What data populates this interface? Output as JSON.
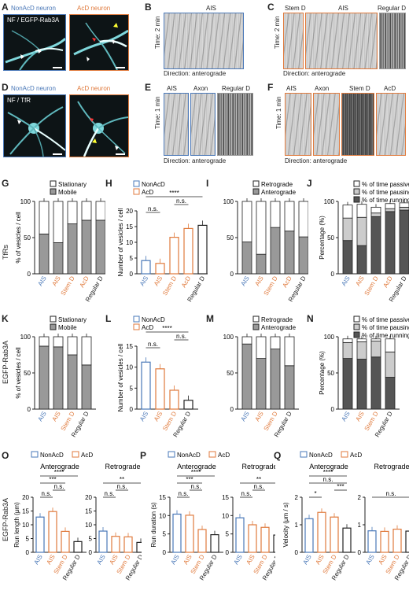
{
  "panels": {
    "A": "A",
    "B": "B",
    "C": "C",
    "D": "D",
    "E": "E",
    "F": "F",
    "G": "G",
    "H": "H",
    "I": "I",
    "J": "J",
    "K": "K",
    "L": "L",
    "M": "M",
    "N": "N",
    "O": "O",
    "P": "P",
    "Q": "Q"
  },
  "row1": {
    "nonacd_title": "NonAcD neuron",
    "acd_title": "AcD neuron",
    "stain_a": "NF / EGFP-Rab3A",
    "stain_d": "NF / TfR",
    "kymo_b": "AIS",
    "kymo_c": [
      "Stem D",
      "AIS",
      "Regular D"
    ],
    "time_2min": "Time: 2 min",
    "time_1min": "Time: 1 min",
    "direction": "Direction: anterograde",
    "kymo_e": [
      "AIS",
      "Axon",
      "Regular D"
    ],
    "kymo_f": [
      "AIS",
      "Axon",
      "Stem D",
      "AcD"
    ]
  },
  "colors": {
    "nonacd": "#4a78b8",
    "acd": "#e07a3c",
    "mobile": "#999999",
    "dark": "#555555",
    "light": "#cccccc"
  },
  "side_labels": {
    "tfr": "TfRs",
    "rab": "EGFP-Rab3A"
  },
  "chart_data": [
    {
      "panel": "G",
      "type": "bar",
      "stacked": true,
      "ylabel": "% of vesicles / cell",
      "ylim": [
        0,
        100
      ],
      "yticks": [
        0,
        50,
        100
      ],
      "legend": [
        "Stationary",
        "Mobile"
      ],
      "categories": [
        "AIS",
        "AIS",
        "Stem D",
        "AcD",
        "Regular D"
      ],
      "cat_colors": [
        "#4a78b8",
        "#e07a3c",
        "#e07a3c",
        "#e07a3c",
        "#222222"
      ],
      "series": [
        {
          "name": "Mobile",
          "values": [
            55,
            43,
            69,
            74,
            74
          ]
        },
        {
          "name": "Stationary",
          "values": [
            45,
            57,
            31,
            26,
            26
          ]
        }
      ]
    },
    {
      "panel": "H",
      "type": "bar",
      "ylabel": "Number of vesicles / cell",
      "ylim": [
        0,
        20
      ],
      "yticks": [
        0,
        5,
        10,
        15,
        20
      ],
      "legend": [
        "NonAcD",
        "AcD"
      ],
      "categories": [
        "AIS",
        "AIS",
        "Stem D",
        "AcD",
        "Regular D"
      ],
      "cat_colors": [
        "#4a78b8",
        "#e07a3c",
        "#e07a3c",
        "#e07a3c",
        "#222222"
      ],
      "values": [
        4.2,
        3.3,
        11.6,
        14.4,
        15.4
      ],
      "sig": [
        {
          "a": 0,
          "b": 1,
          "text": "n.s."
        },
        {
          "a": 2,
          "b": 3,
          "text": "n.s."
        },
        {
          "a": 0,
          "b": 4,
          "text": "****"
        }
      ]
    },
    {
      "panel": "I",
      "type": "bar",
      "stacked": true,
      "ylim": [
        0,
        100
      ],
      "yticks": [
        0,
        50,
        100
      ],
      "legend": [
        "Retrograde",
        "Anterograde"
      ],
      "categories": [
        "AIS",
        "AIS",
        "Stem D",
        "AcD",
        "Regular D"
      ],
      "cat_colors": [
        "#4a78b8",
        "#e07a3c",
        "#e07a3c",
        "#e07a3c",
        "#222222"
      ],
      "series": [
        {
          "name": "Anterograde",
          "values": [
            44,
            27,
            64,
            59,
            51
          ]
        },
        {
          "name": "Retrograde",
          "values": [
            56,
            73,
            36,
            41,
            49
          ]
        }
      ]
    },
    {
      "panel": "J",
      "type": "bar",
      "stacked": true,
      "ylabel": "Percentage (%)",
      "ylim": [
        0,
        100
      ],
      "yticks": [
        0,
        50,
        100
      ],
      "legend": [
        "% of time passive",
        "% of time pausing",
        "% of time running"
      ],
      "categories": [
        "AIS",
        "AIS",
        "Stem D",
        "AcD",
        "Regular D"
      ],
      "cat_colors": [
        "#4a78b8",
        "#e07a3c",
        "#e07a3c",
        "#e07a3c",
        "#222222"
      ],
      "series": [
        {
          "name": "% of time running",
          "values": [
            46,
            39,
            79,
            86,
            88
          ]
        },
        {
          "name": "% of time pausing",
          "values": [
            31,
            39,
            5,
            4,
            4
          ]
        },
        {
          "name": "% of time passive",
          "values": [
            18,
            18,
            8,
            7,
            6
          ]
        }
      ]
    },
    {
      "panel": "K",
      "type": "bar",
      "stacked": true,
      "ylabel": "% of vesicles / cell",
      "ylim": [
        0,
        100
      ],
      "yticks": [
        0,
        50,
        100
      ],
      "legend": [
        "Stationary",
        "Mobile"
      ],
      "categories": [
        "AIS",
        "AIS",
        "Stem D",
        "Regular D"
      ],
      "cat_colors": [
        "#4a78b8",
        "#e07a3c",
        "#e07a3c",
        "#222222"
      ],
      "series": [
        {
          "name": "Mobile",
          "values": [
            87,
            86,
            75,
            61
          ]
        },
        {
          "name": "Stationary",
          "values": [
            13,
            14,
            25,
            39
          ]
        }
      ]
    },
    {
      "panel": "L",
      "type": "bar",
      "ylabel": "Number of vesicles / cell",
      "ylim": [
        0,
        15
      ],
      "yticks": [
        0,
        5,
        10,
        15
      ],
      "legend": [
        "NonAcD",
        "AcD"
      ],
      "categories": [
        "AIS",
        "AIS",
        "Stem D",
        "Regular D"
      ],
      "cat_colors": [
        "#4a78b8",
        "#e07a3c",
        "#e07a3c",
        "#222222"
      ],
      "values": [
        11.2,
        9.6,
        4.5,
        2.1
      ],
      "sig": [
        {
          "a": 0,
          "b": 1,
          "text": "n.s."
        },
        {
          "a": 2,
          "b": 3,
          "text": "n.s."
        },
        {
          "a": 0,
          "b": 3,
          "text": "****"
        }
      ]
    },
    {
      "panel": "M",
      "type": "bar",
      "stacked": true,
      "ylim": [
        0,
        100
      ],
      "yticks": [
        0,
        50,
        100
      ],
      "legend": [
        "Retrograde",
        "Anterograde"
      ],
      "categories": [
        "AIS",
        "AIS",
        "Stem D",
        "Regular D"
      ],
      "cat_colors": [
        "#4a78b8",
        "#e07a3c",
        "#e07a3c",
        "#222222"
      ],
      "series": [
        {
          "name": "Anterograde",
          "values": [
            90,
            70,
            83,
            60
          ]
        },
        {
          "name": "Retrograde",
          "values": [
            10,
            30,
            17,
            40
          ]
        }
      ]
    },
    {
      "panel": "N",
      "type": "bar",
      "stacked": true,
      "ylabel": "Percentage (%)",
      "ylim": [
        0,
        100
      ],
      "yticks": [
        0,
        50,
        100
      ],
      "legend": [
        "% of time passive",
        "% of time pausing",
        "% of time running"
      ],
      "categories": [
        "AIS",
        "AIS",
        "Stem D",
        "Regular D"
      ],
      "cat_colors": [
        "#4a78b8",
        "#e07a3c",
        "#e07a3c",
        "#222222"
      ],
      "series": [
        {
          "name": "% of time running",
          "values": [
            70,
            69,
            72,
            44
          ]
        },
        {
          "name": "% of time pausing",
          "values": [
            22,
            24,
            22,
            35
          ]
        },
        {
          "name": "% of time passive",
          "values": [
            5,
            4,
            3,
            18
          ]
        }
      ]
    },
    {
      "panel": "O",
      "type": "bar",
      "title_left": "Anterograde",
      "title_right": "Retrograde",
      "ylabel": "Run length (μm)",
      "ylim": [
        0,
        20
      ],
      "yticks": [
        0,
        5,
        10,
        15,
        20
      ],
      "legend": [
        "NonAcD",
        "AcD"
      ],
      "categories": [
        "AIS",
        "AIS",
        "Stem D",
        "Regular D"
      ],
      "cat_colors": [
        "#4a78b8",
        "#e07a3c",
        "#e07a3c",
        "#222222"
      ],
      "left_values": [
        12.8,
        14.8,
        7.6,
        3.9
      ],
      "right_values": [
        7.7,
        5.8,
        5.6,
        3.6
      ],
      "left_sig": [
        {
          "a": 0,
          "b": 1,
          "text": "n.s."
        },
        {
          "a": 1,
          "b": 2,
          "text": "n.s."
        },
        {
          "a": 0,
          "b": 2,
          "text": "***"
        },
        {
          "a": 0,
          "b": 3,
          "text": "****"
        }
      ],
      "right_sig": [
        {
          "a": 0,
          "b": 1,
          "text": "n.s."
        },
        {
          "a": 1,
          "b": 2,
          "text": "n.s."
        },
        {
          "a": 0,
          "b": 3,
          "text": "**"
        }
      ]
    },
    {
      "panel": "P",
      "type": "bar",
      "title_left": "Anterograde",
      "title_right": "Retrograde",
      "ylabel": "Run duration (s)",
      "ylim": [
        0,
        15
      ],
      "yticks": [
        0,
        5,
        10,
        15
      ],
      "legend": [
        "NonAcD",
        "AcD"
      ],
      "categories": [
        "AIS",
        "AIS",
        "Stem D",
        "Regular D"
      ],
      "cat_colors": [
        "#4a78b8",
        "#e07a3c",
        "#e07a3c",
        "#222222"
      ],
      "left_values": [
        10.4,
        10.1,
        6.2,
        4.8
      ],
      "right_values": [
        9.4,
        7.5,
        6.8,
        4.7
      ],
      "left_sig": [
        {
          "a": 0,
          "b": 1,
          "text": "n.s."
        },
        {
          "a": 1,
          "b": 2,
          "text": "n.s."
        },
        {
          "a": 0,
          "b": 2,
          "text": "***"
        },
        {
          "a": 0,
          "b": 3,
          "text": "****"
        }
      ],
      "right_sig": [
        {
          "a": 0,
          "b": 1,
          "text": "n.s."
        },
        {
          "a": 1,
          "b": 2,
          "text": "n.s."
        },
        {
          "a": 0,
          "b": 3,
          "text": "**"
        }
      ]
    },
    {
      "panel": "Q",
      "type": "bar",
      "title_left": "Anterograde",
      "title_right": "Retrograde",
      "ylabel": "Velocity (μm / s)",
      "ylim": [
        0,
        2
      ],
      "yticks": [
        0,
        1,
        2
      ],
      "legend": [
        "NonAcD",
        "AcD"
      ],
      "categories": [
        "AIS",
        "AIS",
        "Stem D",
        "Regular D"
      ],
      "cat_colors": [
        "#4a78b8",
        "#e07a3c",
        "#e07a3c",
        "#222222"
      ],
      "left_values": [
        1.22,
        1.45,
        1.28,
        0.88
      ],
      "right_values": [
        0.78,
        0.76,
        0.84,
        0.77
      ],
      "left_sig": [
        {
          "a": 0,
          "b": 1,
          "text": "*"
        },
        {
          "a": 2,
          "b": 3,
          "text": "***"
        },
        {
          "a": 0,
          "b": 3,
          "text": "n.s."
        },
        {
          "a": 0,
          "b": 3,
          "text": "****"
        }
      ],
      "right_sig": [
        {
          "a": 0,
          "b": 3,
          "text": "n.s."
        }
      ]
    }
  ]
}
